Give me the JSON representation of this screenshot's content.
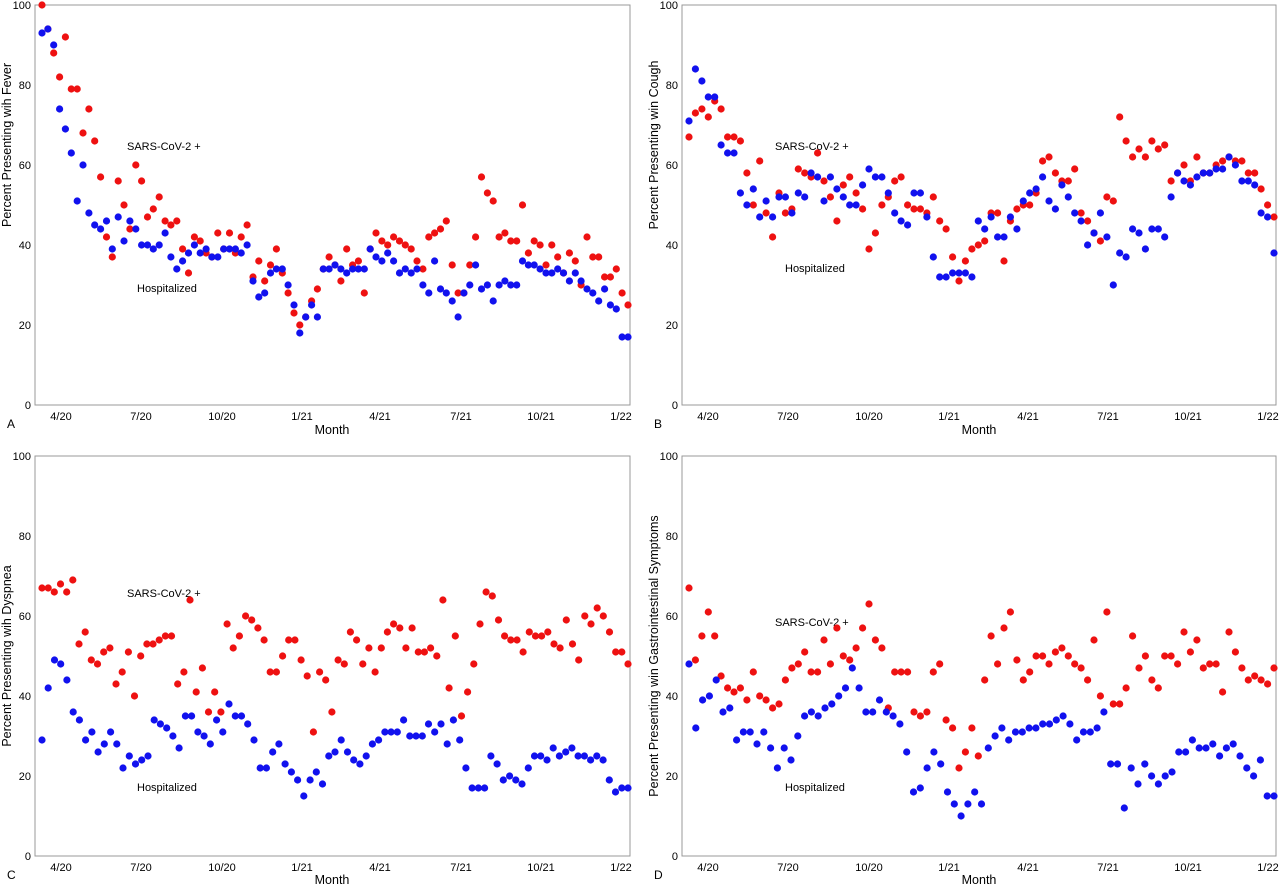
{
  "colors": {
    "sars": "#ee1111",
    "hosp": "#1111ee"
  },
  "chart_data": [
    {
      "type": "scatter",
      "panel": "A",
      "xlabel": "Month",
      "ylabel": "Percent Presenting wih Fever",
      "ylim": [
        0,
        100
      ],
      "yticks": [
        "0",
        "20",
        "40",
        "60",
        "80",
        "100"
      ],
      "xticks": [
        "4/20",
        "7/20",
        "10/20",
        "1/21",
        "4/21",
        "7/21",
        "10/21",
        "1/22"
      ],
      "annotations": [
        {
          "text": "SARS-CoV-2 +",
          "series": "sars"
        },
        {
          "text": "Hospitalized",
          "series": "hosp"
        }
      ],
      "series": [
        {
          "key": "sars",
          "values": [
            100,
            94,
            88,
            82,
            92,
            79,
            79,
            68,
            74,
            66,
            57,
            42,
            37,
            56,
            50,
            44,
            60,
            56,
            47,
            49,
            52,
            46,
            45,
            46,
            39,
            33,
            42,
            41,
            38,
            37,
            43,
            39,
            43,
            38,
            42,
            45,
            32,
            36,
            31,
            35,
            39,
            33,
            28,
            23,
            20,
            22,
            26,
            29,
            34,
            37,
            35,
            31,
            39,
            35,
            36,
            28,
            39,
            43,
            41,
            40,
            42,
            41,
            40,
            39,
            36,
            34,
            42,
            43,
            44,
            46,
            35,
            28,
            28,
            35,
            42,
            57,
            53,
            51,
            42,
            43,
            41,
            41,
            50,
            38,
            41,
            40,
            35,
            40,
            37,
            33,
            38,
            36,
            30,
            42,
            37,
            37,
            32,
            32,
            34,
            28,
            25
          ]
        },
        {
          "key": "hosp",
          "values": [
            93,
            94,
            90,
            74,
            69,
            63,
            51,
            60,
            48,
            45,
            44,
            46,
            39,
            47,
            41,
            46,
            44,
            40,
            40,
            39,
            40,
            43,
            37,
            34,
            36,
            38,
            40,
            38,
            39,
            37,
            37,
            39,
            39,
            39,
            38,
            40,
            31,
            27,
            28,
            33,
            34,
            34,
            30,
            25,
            18,
            22,
            25,
            22,
            34,
            34,
            35,
            34,
            33,
            34,
            34,
            34,
            39,
            37,
            36,
            38,
            36,
            33,
            34,
            33,
            34,
            30,
            28,
            36,
            29,
            28,
            26,
            22,
            28,
            30,
            35,
            29,
            30,
            26,
            30,
            31,
            30,
            30,
            36,
            35,
            35,
            34,
            33,
            33,
            34,
            33,
            31,
            33,
            31,
            29,
            28,
            26,
            29,
            25,
            24,
            17,
            17
          ]
        }
      ]
    },
    {
      "type": "scatter",
      "panel": "B",
      "xlabel": "Month",
      "ylabel": "Percent Presenting win Cough",
      "ylim": [
        0,
        100
      ],
      "yticks": [
        "0",
        "20",
        "40",
        "60",
        "80",
        "100"
      ],
      "xticks": [
        "4/20",
        "7/20",
        "10/20",
        "1/21",
        "4/21",
        "7/21",
        "10/21",
        "1/22"
      ],
      "annotations": [
        {
          "text": "SARS-CoV-2 +",
          "series": "sars"
        },
        {
          "text": "Hospitalized",
          "series": "hosp"
        }
      ],
      "series": [
        {
          "key": "sars",
          "values": [
            67,
            73,
            74,
            72,
            76,
            74,
            67,
            67,
            66,
            58,
            50,
            61,
            48,
            42,
            53,
            48,
            49,
            59,
            58,
            57,
            63,
            56,
            52,
            46,
            55,
            57,
            53,
            49,
            39,
            43,
            50,
            52,
            56,
            57,
            50,
            49,
            49,
            48,
            52,
            46,
            44,
            37,
            31,
            36,
            39,
            40,
            41,
            48,
            48,
            36,
            46,
            49,
            50,
            50,
            53,
            61,
            62,
            58,
            56,
            56,
            59,
            48,
            46,
            43,
            41,
            52,
            51,
            72,
            66,
            62,
            64,
            62,
            66,
            64,
            65,
            56,
            58,
            60,
            56,
            62,
            58,
            58,
            60,
            61,
            62,
            61,
            61,
            58,
            58,
            54,
            50,
            47
          ]
        },
        {
          "key": "hosp",
          "values": [
            71,
            84,
            81,
            77,
            77,
            65,
            63,
            63,
            53,
            50,
            54,
            47,
            51,
            47,
            52,
            52,
            48,
            53,
            52,
            58,
            57,
            51,
            57,
            54,
            52,
            50,
            50,
            55,
            59,
            57,
            57,
            53,
            48,
            46,
            45,
            53,
            53,
            47,
            37,
            32,
            32,
            33,
            33,
            33,
            32,
            46,
            44,
            47,
            42,
            42,
            47,
            44,
            51,
            53,
            54,
            57,
            51,
            49,
            55,
            52,
            48,
            46,
            40,
            43,
            48,
            42,
            30,
            38,
            37,
            44,
            43,
            39,
            44,
            44,
            42,
            52,
            58,
            56,
            55,
            57,
            58,
            58,
            59,
            59,
            62,
            60,
            56,
            56,
            55,
            48,
            47,
            38
          ]
        }
      ]
    },
    {
      "type": "scatter",
      "panel": "C",
      "xlabel": "Month",
      "ylabel": "Percent Presenting wih Dyspnea",
      "ylim": [
        0,
        100
      ],
      "yticks": [
        "0",
        "20",
        "40",
        "60",
        "80",
        "100"
      ],
      "xticks": [
        "4/20",
        "7/20",
        "10/20",
        "1/21",
        "4/21",
        "7/21",
        "10/21",
        "1/22"
      ],
      "annotations": [
        {
          "text": "SARS-CoV-2 +",
          "series": "sars"
        },
        {
          "text": "Hospitalized",
          "series": "hosp"
        }
      ],
      "series": [
        {
          "key": "sars",
          "values": [
            67,
            67,
            66,
            68,
            66,
            69,
            53,
            56,
            49,
            48,
            51,
            52,
            43,
            46,
            51,
            40,
            50,
            53,
            53,
            54,
            55,
            55,
            43,
            46,
            64,
            41,
            47,
            36,
            41,
            36,
            58,
            52,
            55,
            60,
            59,
            57,
            54,
            46,
            46,
            50,
            54,
            54,
            49,
            45,
            31,
            46,
            44,
            36,
            49,
            48,
            56,
            54,
            48,
            52,
            46,
            52,
            56,
            58,
            57,
            52,
            57,
            51,
            51,
            52,
            50,
            64,
            42,
            55,
            35,
            41,
            48,
            58,
            66,
            65,
            59,
            55,
            54,
            54,
            51,
            56,
            55,
            55,
            56,
            53,
            52,
            59,
            53,
            49,
            60,
            58,
            62,
            60,
            56,
            51,
            51,
            48
          ]
        },
        {
          "key": "hosp",
          "values": [
            29,
            42,
            49,
            48,
            44,
            36,
            34,
            29,
            31,
            26,
            28,
            31,
            28,
            22,
            25,
            23,
            24,
            25,
            34,
            33,
            32,
            30,
            27,
            35,
            35,
            31,
            30,
            28,
            34,
            31,
            38,
            35,
            35,
            33,
            29,
            22,
            22,
            26,
            28,
            23,
            21,
            19,
            15,
            19,
            21,
            18,
            25,
            26,
            29,
            26,
            24,
            23,
            25,
            28,
            29,
            31,
            31,
            31,
            34,
            30,
            30,
            30,
            33,
            31,
            33,
            28,
            34,
            29,
            22,
            17,
            17,
            17,
            25,
            23,
            19,
            20,
            19,
            18,
            22,
            25,
            25,
            24,
            27,
            25,
            26,
            27,
            25,
            25,
            24,
            25,
            24,
            19,
            16,
            17,
            17
          ]
        }
      ]
    },
    {
      "type": "scatter",
      "panel": "D",
      "xlabel": "Month",
      "ylabel": "Percent Presenting win Gastrointestinal Symptoms",
      "ylim": [
        0,
        100
      ],
      "yticks": [
        "0",
        "20",
        "40",
        "60",
        "80",
        "100"
      ],
      "xticks": [
        "4/20",
        "7/20",
        "10/20",
        "1/21",
        "4/21",
        "7/21",
        "10/21",
        "1/22"
      ],
      "annotations": [
        {
          "text": "SARS-CoV-2 +",
          "series": "sars"
        },
        {
          "text": "Hospitalized",
          "series": "hosp"
        }
      ],
      "series": [
        {
          "key": "sars",
          "values": [
            67,
            49,
            55,
            61,
            55,
            45,
            42,
            41,
            42,
            39,
            46,
            40,
            39,
            37,
            38,
            44,
            47,
            48,
            51,
            46,
            46,
            54,
            48,
            57,
            50,
            49,
            52,
            57,
            63,
            54,
            52,
            37,
            46,
            46,
            46,
            36,
            35,
            36,
            46,
            48,
            34,
            32,
            22,
            26,
            32,
            25,
            44,
            55,
            48,
            57,
            61,
            49,
            44,
            46,
            50,
            50,
            48,
            51,
            52,
            50,
            48,
            47,
            44,
            54,
            40,
            61,
            38,
            38,
            42,
            55,
            47,
            50,
            44,
            42,
            50,
            50,
            48,
            56,
            51,
            54,
            47,
            48,
            48,
            41,
            56,
            51,
            47,
            44,
            45,
            44,
            43,
            47
          ]
        },
        {
          "key": "hosp",
          "values": [
            48,
            32,
            39,
            40,
            44,
            36,
            37,
            29,
            31,
            31,
            28,
            31,
            27,
            22,
            27,
            24,
            30,
            35,
            36,
            35,
            37,
            38,
            40,
            42,
            47,
            42,
            36,
            36,
            39,
            36,
            35,
            33,
            26,
            16,
            17,
            22,
            26,
            23,
            16,
            13,
            10,
            13,
            16,
            13,
            27,
            30,
            32,
            29,
            31,
            31,
            32,
            32,
            33,
            33,
            34,
            35,
            33,
            29,
            31,
            31,
            32,
            36,
            23,
            23,
            12,
            22,
            18,
            23,
            20,
            18,
            20,
            21,
            26,
            26,
            29,
            27,
            27,
            28,
            25,
            27,
            28,
            25,
            22,
            20,
            24,
            15,
            15
          ]
        }
      ]
    }
  ]
}
